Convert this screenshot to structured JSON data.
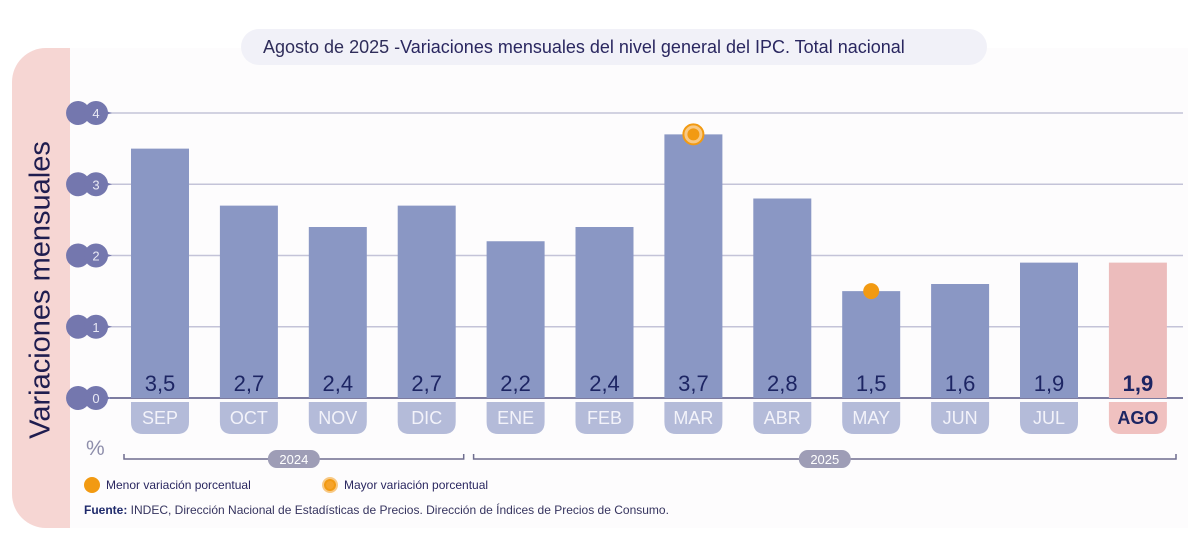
{
  "title": {
    "prefix": "Agosto de 2025 - ",
    "main": "Variaciones mensuales del nivel general del IPC. Total nacional"
  },
  "y_axis_label": "Variaciones mensuales",
  "unit_label": "%",
  "legend": [
    {
      "marker": "filled-orange-dot",
      "label": "Menor variación porcentual"
    },
    {
      "marker": "ringed-orange-dot",
      "label": "Mayor variación porcentual"
    }
  ],
  "source": {
    "label": "Fuente:",
    "text": " INDEC, Dirección Nacional de Estadísticas de Precios. Dirección de Índices de Precios de Consumo."
  },
  "colors": {
    "bar": "#8a97c4",
    "bar_highlight": "#ecbcbc",
    "month_tab": "#b4bbd9",
    "month_tab_highlight": "#f0c1c0",
    "tick_bubble": "#7477ae",
    "value_text": "#1d2563",
    "marker": "#f29a12",
    "year_pill": "#9e9db6"
  },
  "chart_data": {
    "type": "bar",
    "title": "Agosto de 2025 - Variaciones mensuales del nivel general del IPC. Total nacional",
    "xlabel": "",
    "ylabel": "Variaciones mensuales (%)",
    "ylim": [
      0,
      4
    ],
    "yticks": [
      "0",
      "1",
      "2",
      "3",
      "4"
    ],
    "grid": true,
    "categories": [
      "SEP",
      "OCT",
      "NOV",
      "DIC",
      "ENE",
      "FEB",
      "MAR",
      "ABR",
      "MAY",
      "JUN",
      "JUL",
      "AGO"
    ],
    "values": [
      3.5,
      2.7,
      2.4,
      2.7,
      2.2,
      2.4,
      3.7,
      2.8,
      1.5,
      1.6,
      1.9,
      1.9
    ],
    "value_labels": [
      "3,5",
      "2,7",
      "2,4",
      "2,7",
      "2,2",
      "2,4",
      "3,7",
      "2,8",
      "1,5",
      "1,6",
      "1,9",
      "1,9"
    ],
    "highlighted_category": "AGO",
    "year_groups": [
      {
        "label": "2024",
        "categories": [
          "SEP",
          "OCT",
          "NOV",
          "DIC"
        ]
      },
      {
        "label": "2025",
        "categories": [
          "ENE",
          "FEB",
          "MAR",
          "ABR",
          "MAY",
          "JUN",
          "JUL",
          "AGO"
        ]
      }
    ],
    "annotations": [
      {
        "category": "MAY",
        "type": "Menor variación porcentual"
      },
      {
        "category": "MAR",
        "type": "Mayor variación porcentual"
      }
    ],
    "legend_position": "bottom-left"
  }
}
